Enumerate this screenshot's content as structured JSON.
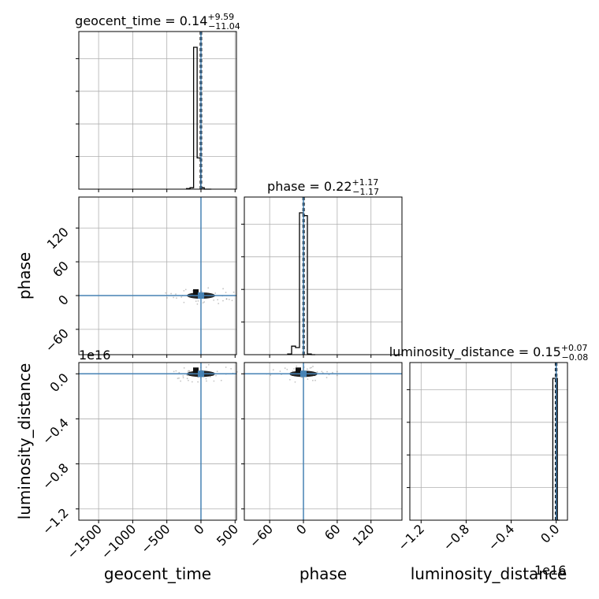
{
  "chart_data": {
    "type": "corner",
    "parameters": [
      "geocent_time",
      "phase",
      "luminosity_distance"
    ],
    "diagonal": [
      {
        "parameter": "geocent_time",
        "title_prefix": "geocent_time = 0.14",
        "title_plus": "+9.59",
        "title_minus": "−11.04",
        "median": 0.14,
        "xlim": [
          -1790,
          520
        ],
        "bin_edges": [
          -212,
          -160,
          -108,
          -56,
          -4,
          48,
          100,
          152
        ],
        "counts": [
          0.004,
          0.01,
          1.0,
          0.22,
          0.01,
          0,
          0
        ],
        "quantile_lines": [
          -10.9,
          0.14,
          9.73
        ]
      },
      {
        "parameter": "phase",
        "title_prefix": "phase = 0.22",
        "title_plus": "+1.17",
        "title_minus": "−1.17",
        "median": 0.22,
        "xlim": [
          -105,
          175
        ],
        "bin_edges": [
          -28,
          -21,
          -14,
          -7,
          0,
          7,
          14,
          21
        ],
        "counts": [
          0.005,
          0.06,
          0.05,
          1.0,
          0.98,
          0.005,
          0
        ],
        "quantile_lines": [
          -0.95,
          0.22,
          1.39
        ]
      },
      {
        "parameter": "luminosity_distance",
        "title_prefix": "luminosity_distance = 0.15",
        "title_plus": "+0.07",
        "title_minus": "−0.08",
        "median": 0.15,
        "xlim": [
          -1.3,
          0.1
        ],
        "bin_edges": [
          -0.03,
          -0.01,
          0.01,
          0.03
        ],
        "counts": [
          1.0,
          1.0,
          0
        ],
        "quantile_lines": [
          -0.0075,
          0.0,
          0.006
        ],
        "offset_text": "1e16"
      }
    ],
    "pairs": [
      {
        "x": "geocent_time",
        "y": "phase",
        "ylim": [
          -105,
          175
        ],
        "truth": [
          0,
          0
        ]
      },
      {
        "x": "geocent_time",
        "y": "luminosity_distance",
        "ylim": [
          -1.3,
          0.1
        ],
        "truth": [
          0,
          0
        ],
        "y_offset_text": "1e16"
      },
      {
        "x": "phase",
        "y": "luminosity_distance",
        "ylim": [
          -1.3,
          0.1
        ],
        "truth": [
          0,
          0
        ]
      }
    ],
    "ticks": {
      "geocent_time": [
        -1500,
        -1000,
        -500,
        0,
        500
      ],
      "phase": [
        -60,
        0,
        60,
        120
      ],
      "luminosity_distance": [
        -1.2,
        -0.8,
        -0.4,
        0.0
      ]
    },
    "tick_labels": {
      "geocent_time": [
        "−1500",
        "−1000",
        "−500",
        "0",
        "500"
      ],
      "phase": [
        "−60",
        "0",
        "60",
        "120"
      ],
      "luminosity_distance": [
        "−1.2",
        "−0.8",
        "−0.4",
        "0.0"
      ]
    },
    "xlabels": [
      "geocent_time",
      "phase",
      "luminosity_distance"
    ],
    "ylabels": [
      "phase",
      "luminosity_distance"
    ],
    "truth_color": "#4682b4",
    "hist_color": "#000000",
    "grid": true
  }
}
